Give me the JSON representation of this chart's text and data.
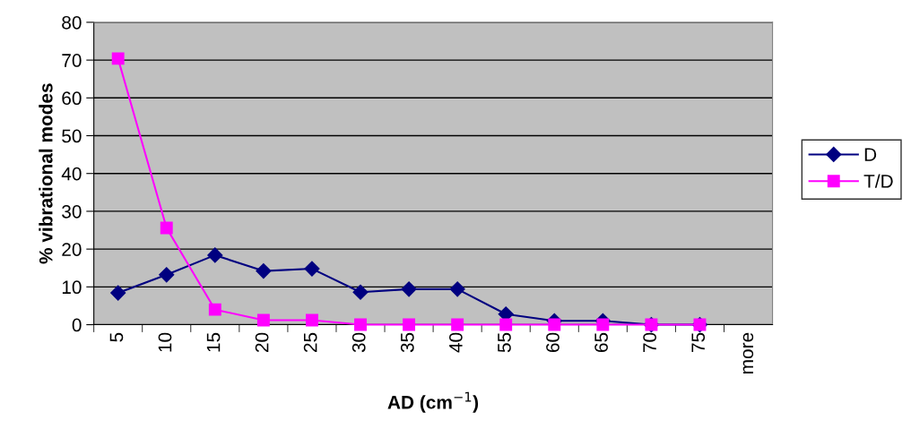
{
  "chart_data": {
    "type": "line",
    "xlabel": "AD (cm$^{−1}$)",
    "ylabel": "% vibrational modes",
    "categories": [
      "5",
      "10",
      "15",
      "20",
      "25",
      "30",
      "35",
      "40",
      "55",
      "60",
      "65",
      "70",
      "75",
      "more"
    ],
    "series": [
      {
        "name": "D",
        "color": "#000080",
        "marker": "diamond",
        "values": [
          8.4,
          13.2,
          18.4,
          14.2,
          14.8,
          8.6,
          9.4,
          9.4,
          2.8,
          1.0,
          1.0,
          0,
          0,
          null
        ]
      },
      {
        "name": "T/D",
        "color": "#ff00ff",
        "marker": "square",
        "values": [
          70.4,
          25.6,
          4.0,
          1.2,
          1.2,
          0,
          0,
          0,
          0,
          0,
          0,
          0,
          0,
          null
        ]
      }
    ],
    "ylim": [
      0,
      80
    ],
    "yticks": [
      0,
      10,
      20,
      30,
      40,
      50,
      60,
      70,
      80
    ],
    "grid": "y",
    "legend": "right",
    "line_style": "solid"
  }
}
